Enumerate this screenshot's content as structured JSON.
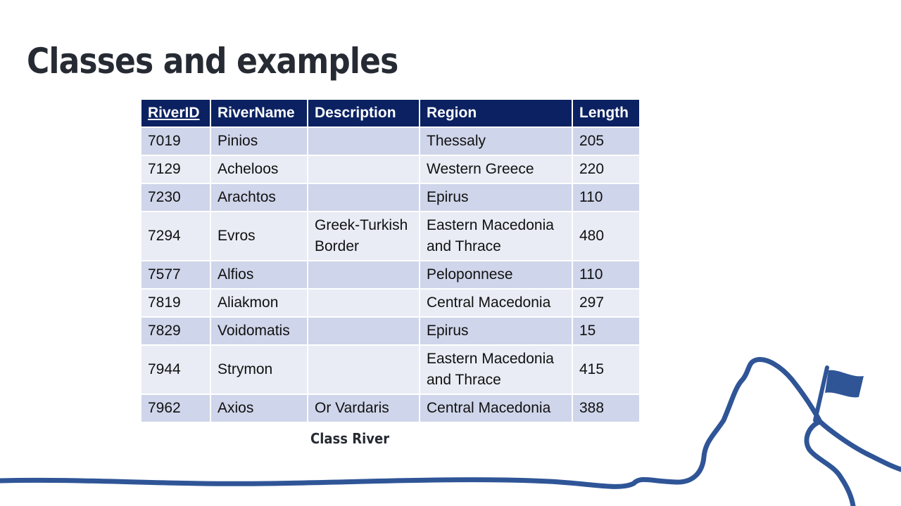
{
  "slide": {
    "title": "Classes and examples",
    "caption": "Class River"
  },
  "table": {
    "headers": [
      "RiverID",
      "RiverName",
      "Description",
      "Region",
      "Length"
    ],
    "rows": [
      {
        "id": "7019",
        "name": "Pinios",
        "description": "",
        "region": "Thessaly",
        "length": "205"
      },
      {
        "id": "7129",
        "name": "Acheloos",
        "description": "",
        "region": "Western Greece",
        "length": "220"
      },
      {
        "id": "7230",
        "name": "Arachtos",
        "description": "",
        "region": "Epirus",
        "length": "110"
      },
      {
        "id": "7294",
        "name": "Evros",
        "description": "Greek-Turkish Border",
        "region": "Eastern Macedonia and Thrace",
        "length": "480"
      },
      {
        "id": "7577",
        "name": "Alfios",
        "description": "",
        "region": "Peloponnese",
        "length": "110"
      },
      {
        "id": "7819",
        "name": "Aliakmon",
        "description": "",
        "region": "Central Macedonia",
        "length": "297"
      },
      {
        "id": "7829",
        "name": "Voidomatis",
        "description": "",
        "region": "Epirus",
        "length": "15"
      },
      {
        "id": "7944",
        "name": "Strymon",
        "description": "",
        "region": "Eastern Macedonia and Thrace",
        "length": "415"
      },
      {
        "id": "7962",
        "name": "Axios",
        "description": "Or Vardaris",
        "region": "Central Macedonia",
        "length": "388"
      }
    ]
  },
  "colors": {
    "header_bg": "#0b2161",
    "row_odd": "#cfd5ea",
    "row_even": "#e9ecf5",
    "river_line": "#2f5597",
    "title_text": "#262b33"
  },
  "icons": {
    "flag": "flag-icon",
    "mountain": "mountain-river-line"
  }
}
